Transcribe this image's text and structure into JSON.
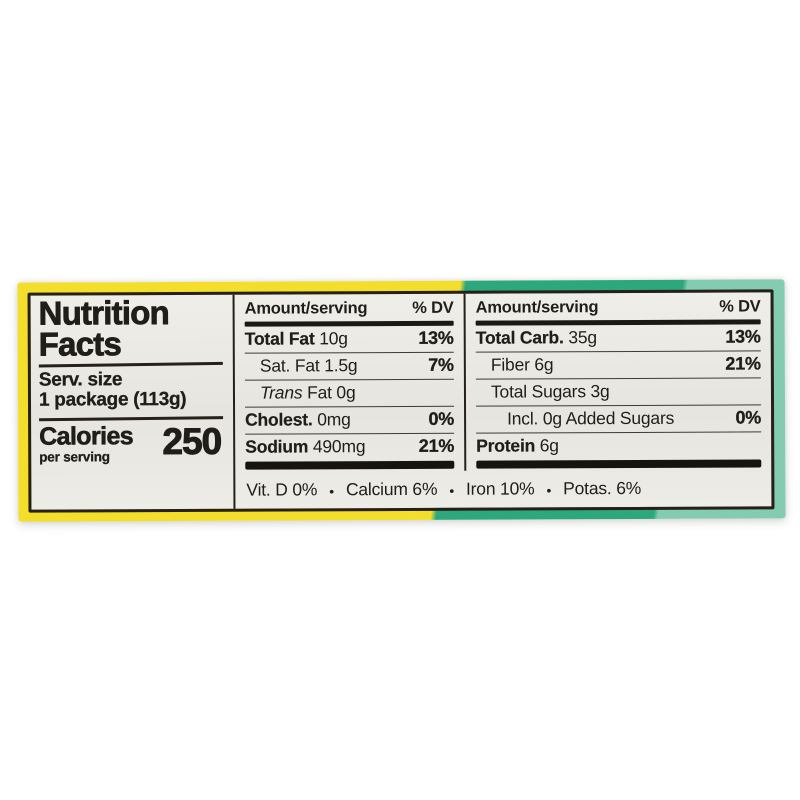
{
  "panel": {
    "title": {
      "line1": "Nutrition",
      "line2": "Facts"
    },
    "serving": {
      "label": "Serv. size",
      "value": "1 package (113g)"
    },
    "calories": {
      "label": "Calories",
      "sublabel": "per serving",
      "value": "250"
    },
    "columns": [
      {
        "header": {
          "amount": "Amount/serving",
          "dv": "% DV"
        },
        "rows": [
          {
            "segments": [
              {
                "t": "Total Fat",
                "b": true
              },
              {
                "t": " 10g"
              }
            ],
            "dv": "13%",
            "indent": 0
          },
          {
            "segments": [
              {
                "t": "Sat. Fat 1.5g"
              }
            ],
            "dv": "7%",
            "indent": 1
          },
          {
            "segments": [
              {
                "t": "Trans",
                "i": true
              },
              {
                "t": " Fat 0g"
              }
            ],
            "dv": "",
            "indent": 1
          },
          {
            "segments": [
              {
                "t": "Cholest.",
                "b": true
              },
              {
                "t": " 0mg"
              }
            ],
            "dv": "0%",
            "indent": 0
          },
          {
            "segments": [
              {
                "t": "Sodium",
                "b": true
              },
              {
                "t": " 490mg"
              }
            ],
            "dv": "21%",
            "indent": 0
          }
        ]
      },
      {
        "header": {
          "amount": "Amount/serving",
          "dv": "% DV"
        },
        "rows": [
          {
            "segments": [
              {
                "t": "Total Carb.",
                "b": true
              },
              {
                "t": " 35g"
              }
            ],
            "dv": "13%",
            "indent": 0
          },
          {
            "segments": [
              {
                "t": "Fiber 6g"
              }
            ],
            "dv": "21%",
            "indent": 1
          },
          {
            "segments": [
              {
                "t": "Total Sugars 3g"
              }
            ],
            "dv": "",
            "indent": 1
          },
          {
            "segments": [
              {
                "t": "Incl. 0g Added Sugars"
              }
            ],
            "dv": "0%",
            "indent": 2
          },
          {
            "segments": [
              {
                "t": "Protein",
                "b": true
              },
              {
                "t": " 6g"
              }
            ],
            "dv": "",
            "indent": 0
          }
        ]
      }
    ],
    "micronutrients": {
      "items": [
        "Vit. D 0%",
        "Calcium 6%",
        "Iron 10%",
        "Potas. 6%"
      ],
      "bullet": "•"
    },
    "colors": {
      "package_yellow": "#f3df2b",
      "package_green_dark": "#2ca87c",
      "package_green_light": "#83ccb2",
      "label_background": "#e8e7e2",
      "ink": "#211e1a"
    }
  }
}
